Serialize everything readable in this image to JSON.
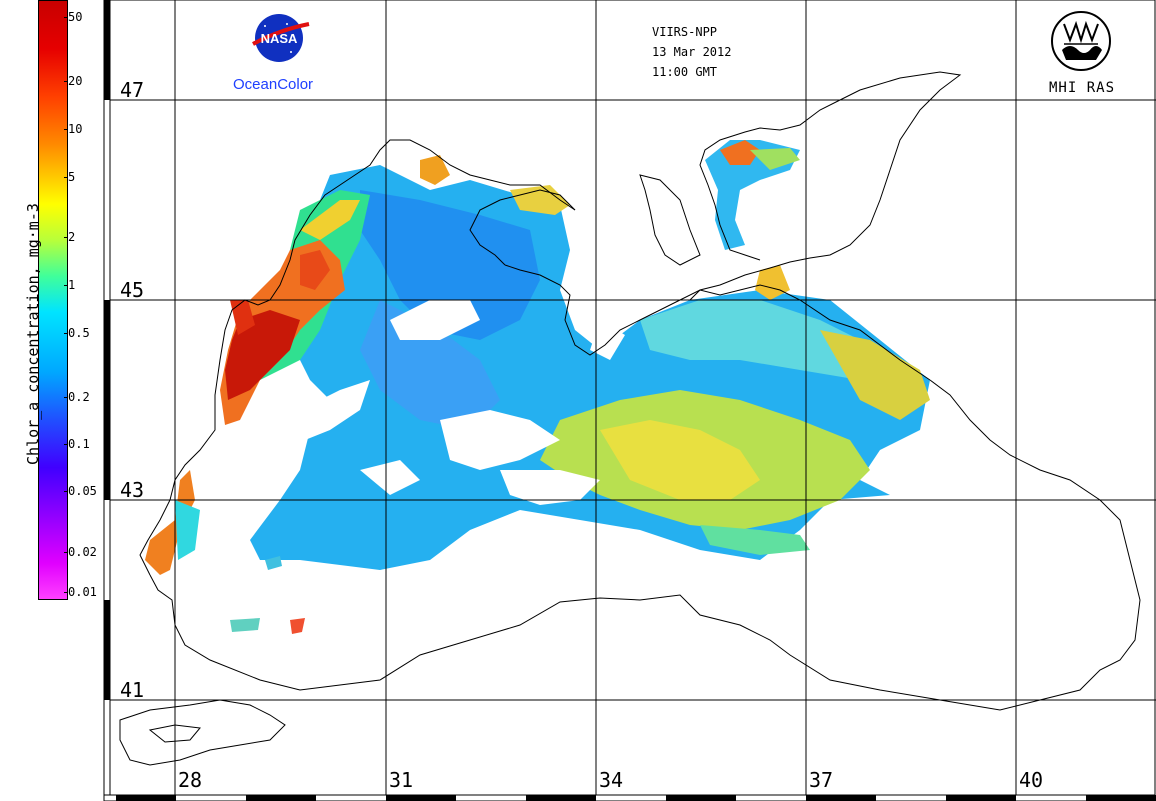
{
  "colorbar": {
    "title": "Chlor_a concentration, mg·m-3",
    "ticks": [
      "50",
      "20",
      "10",
      "5",
      "2",
      "1",
      "0.5",
      "0.2",
      "0.1",
      "0.05",
      "0.02",
      "0.01"
    ]
  },
  "latitudes": [
    "47",
    "45",
    "43",
    "41"
  ],
  "longitudes": [
    "28",
    "31",
    "34",
    "37",
    "40"
  ],
  "header": {
    "sensor": "VIIRS-NPP",
    "date": "13 Mar 2012",
    "time": "11:00 GMT"
  },
  "logos": {
    "nasa_text": "NASA",
    "nasa_program": "OceanColor",
    "mhi_text": "MHI RAS"
  },
  "colors": {
    "land": "#ffffff",
    "coast": "#000000",
    "grid": "#000000",
    "high_chl": "#e03010",
    "mid_chl": "#f0e040",
    "low_chl": "#20a8f0"
  }
}
